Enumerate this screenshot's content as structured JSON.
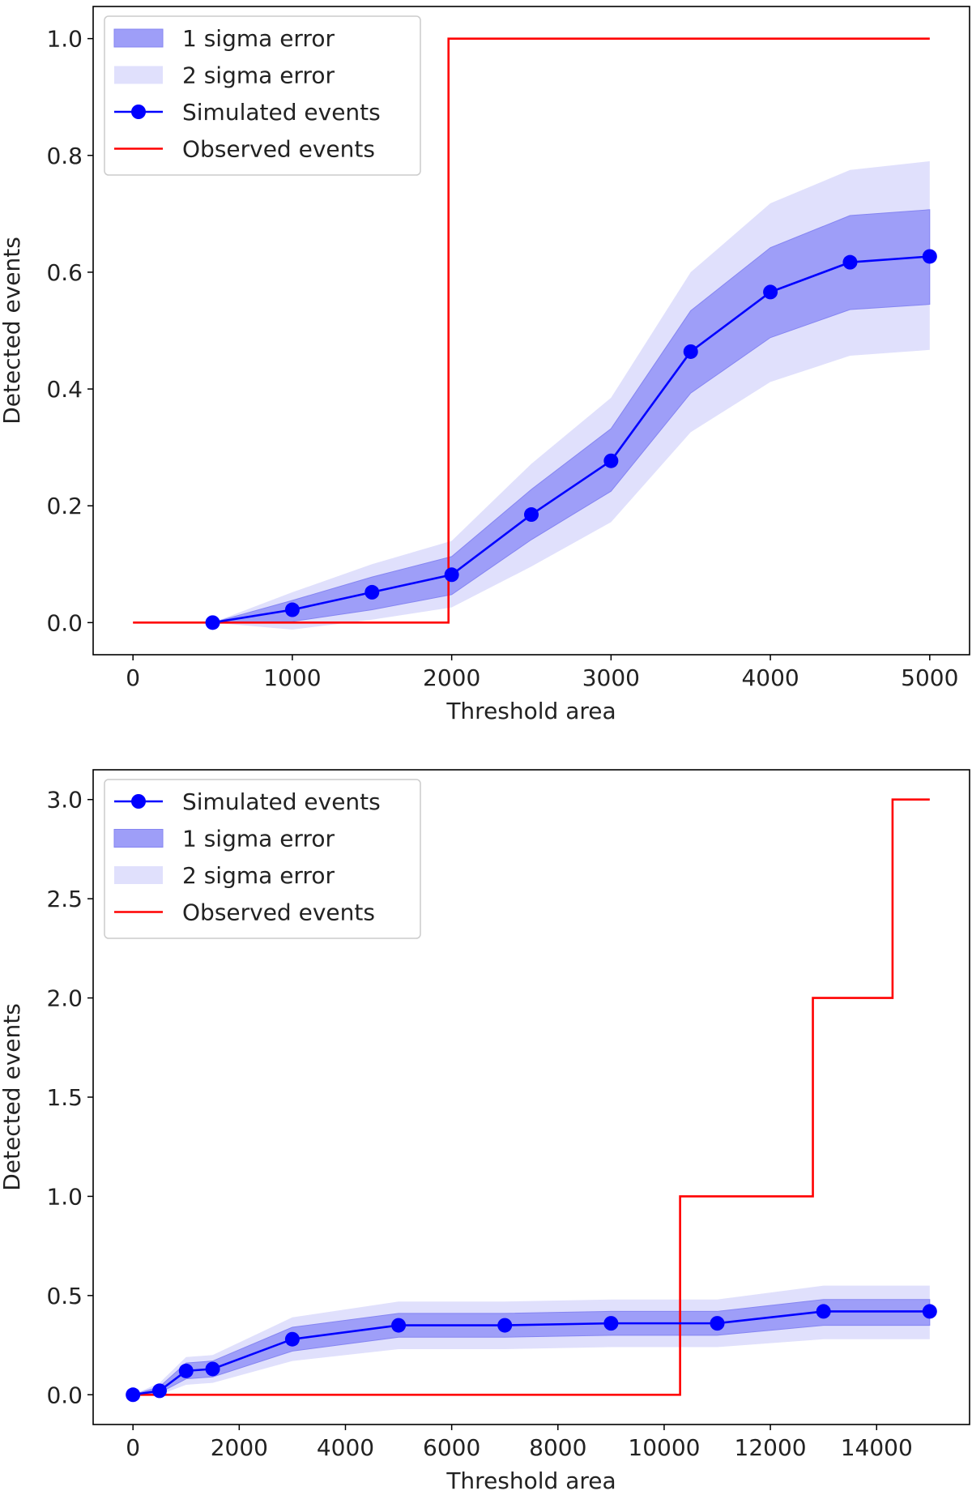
{
  "chart_data": [
    {
      "type": "line",
      "xlabel": "Threshold area",
      "ylabel": "Detected events",
      "xlim": [
        -250,
        5250
      ],
      "ylim": [
        -0.055,
        1.055
      ],
      "xticks": [
        0,
        1000,
        2000,
        3000,
        4000,
        5000
      ],
      "xtick_labels": [
        "0",
        "1000",
        "2000",
        "3000",
        "4000",
        "5000"
      ],
      "yticks": [
        0.0,
        0.2,
        0.4,
        0.6,
        0.8,
        1.0
      ],
      "ytick_labels": [
        "0.0",
        "0.2",
        "0.4",
        "0.6",
        "0.8",
        "1.0"
      ],
      "grid": false,
      "legend_position": "top-left",
      "legend_order": [
        "sigma1",
        "sigma2",
        "simulated",
        "observed"
      ],
      "legend_labels": {
        "sigma1": "1 sigma error",
        "sigma2": "2 sigma error",
        "simulated": "Simulated events",
        "observed": "Observed events"
      },
      "simulated": {
        "x": [
          500,
          1000,
          1500,
          2000,
          2500,
          3000,
          3500,
          4000,
          4500,
          5000
        ],
        "y": [
          0.0,
          0.022,
          0.052,
          0.082,
          0.185,
          0.277,
          0.464,
          0.566,
          0.617,
          0.627
        ],
        "sigma1_low": [
          0.0,
          0.002,
          0.022,
          0.048,
          0.142,
          0.225,
          0.393,
          0.488,
          0.536,
          0.545
        ],
        "sigma1_high": [
          0.0,
          0.038,
          0.078,
          0.113,
          0.228,
          0.332,
          0.534,
          0.642,
          0.697,
          0.707
        ],
        "sigma2_low": [
          0.0,
          -0.012,
          0.005,
          0.026,
          0.096,
          0.172,
          0.326,
          0.412,
          0.457,
          0.467
        ],
        "sigma2_high": [
          0.0,
          0.052,
          0.1,
          0.14,
          0.272,
          0.385,
          0.6,
          0.718,
          0.775,
          0.79
        ]
      },
      "observed": {
        "x": [
          0,
          1980,
          1980,
          5000
        ],
        "y": [
          0,
          0,
          1,
          1
        ]
      },
      "colors": {
        "simulated": "#0000ff",
        "sigma1": "#9e9ef8",
        "sigma2": "#e0e0fc",
        "observed": "#ff0000"
      }
    },
    {
      "type": "line",
      "xlabel": "Threshold area",
      "ylabel": "Detected events",
      "xlim": [
        -750,
        15750
      ],
      "ylim": [
        -0.15,
        3.15
      ],
      "xticks": [
        0,
        2000,
        4000,
        6000,
        8000,
        10000,
        12000,
        14000
      ],
      "xtick_labels": [
        "0",
        "2000",
        "4000",
        "6000",
        "8000",
        "10000",
        "12000",
        "14000"
      ],
      "yticks": [
        0.0,
        0.5,
        1.0,
        1.5,
        2.0,
        2.5,
        3.0
      ],
      "ytick_labels": [
        "0.0",
        "0.5",
        "1.0",
        "1.5",
        "2.0",
        "2.5",
        "3.0"
      ],
      "grid": false,
      "legend_position": "top-left",
      "legend_order": [
        "simulated",
        "sigma1",
        "sigma2",
        "observed"
      ],
      "legend_labels": {
        "sigma1": "1 sigma error",
        "sigma2": "2 sigma error",
        "simulated": "Simulated events",
        "observed": "Observed events"
      },
      "simulated": {
        "x": [
          0,
          500,
          1000,
          1500,
          3000,
          5000,
          7000,
          9000,
          11000,
          13000,
          15000
        ],
        "y": [
          0.0,
          0.02,
          0.12,
          0.13,
          0.28,
          0.35,
          0.35,
          0.36,
          0.36,
          0.42,
          0.42
        ],
        "sigma1_low": [
          0.0,
          0.01,
          0.08,
          0.09,
          0.22,
          0.29,
          0.29,
          0.3,
          0.3,
          0.35,
          0.35
        ],
        "sigma1_high": [
          0.0,
          0.04,
          0.16,
          0.17,
          0.34,
          0.41,
          0.41,
          0.42,
          0.42,
          0.48,
          0.48
        ],
        "sigma2_low": [
          0.0,
          0.0,
          0.05,
          0.06,
          0.17,
          0.23,
          0.23,
          0.24,
          0.24,
          0.28,
          0.28
        ],
        "sigma2_high": [
          0.0,
          0.06,
          0.19,
          0.2,
          0.39,
          0.47,
          0.47,
          0.48,
          0.48,
          0.55,
          0.55
        ]
      },
      "observed": {
        "x": [
          0,
          10300,
          10300,
          12800,
          12800,
          14300,
          14300,
          15000
        ],
        "y": [
          0,
          0,
          1,
          1,
          2,
          2,
          3,
          3
        ]
      },
      "colors": {
        "simulated": "#0000ff",
        "sigma1": "#9e9ef8",
        "sigma2": "#e0e0fc",
        "observed": "#ff0000"
      }
    }
  ]
}
